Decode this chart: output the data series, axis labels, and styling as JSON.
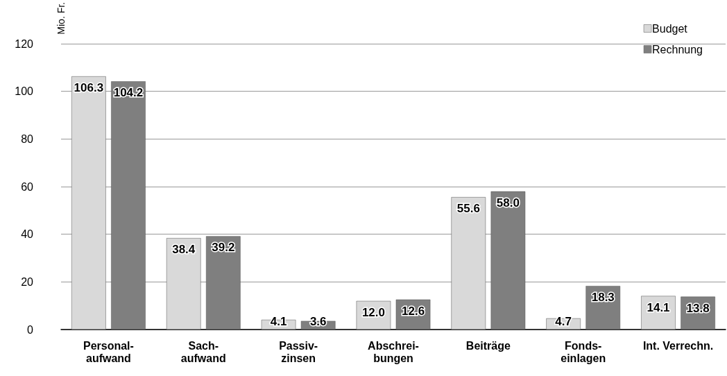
{
  "chart_data": {
    "type": "bar",
    "ylabel": "Mio. Fr.",
    "categories": [
      "Personal-\naufwand",
      "Sach-\naufwand",
      "Passiv-\nzinsen",
      "Abschrei-\nbungen",
      "Beiträge",
      "Fonds-\neinlagen",
      "Int. Verrechn."
    ],
    "series": [
      {
        "name": "Budget",
        "color": "#d9d9d9",
        "values": [
          106.3,
          38.4,
          4.1,
          12.0,
          55.6,
          4.7,
          14.1
        ],
        "value_labels": [
          "106.3",
          "38.4",
          "4.1",
          "12.0",
          "55.6",
          "4.7",
          "14.1"
        ]
      },
      {
        "name": "Rechnung",
        "color": "#7f7f7f",
        "values": [
          104.2,
          39.2,
          3.6,
          12.6,
          58.0,
          18.3,
          13.8
        ],
        "value_labels": [
          "104.2",
          "39.2",
          "3.6",
          "12.6",
          "58.0",
          "18.3",
          "13.8"
        ]
      }
    ],
    "ylim": [
      0,
      120
    ],
    "yticks": [
      0,
      20,
      40,
      60,
      80,
      100,
      120
    ],
    "grid": "y",
    "legend": "top right"
  }
}
